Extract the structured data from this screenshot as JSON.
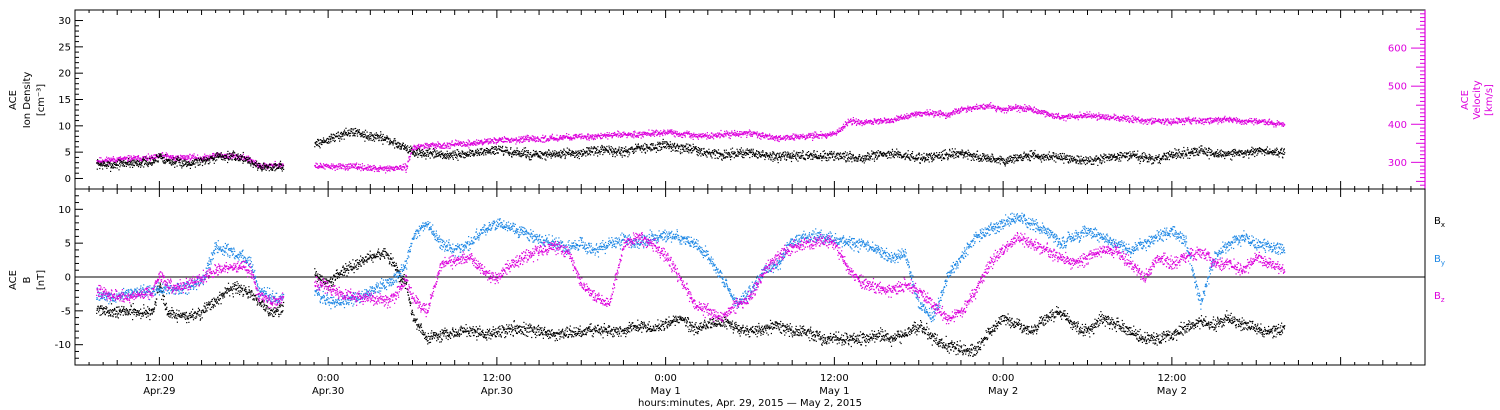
{
  "colors": {
    "black": "#000000",
    "magenta": "#dd00dd",
    "blue": "#1e88e5"
  },
  "chart_data": [
    {
      "type": "scatter",
      "panel": "top",
      "ylabel_left": [
        "ACE",
        "Ion Density",
        "[cm⁻³]"
      ],
      "ylabel_right": [
        "ACE",
        "Velocity",
        "[km/s]"
      ],
      "ylim_left": [
        -2,
        32
      ],
      "yticks_left": [
        "0",
        "5",
        "10",
        "15",
        "20",
        "25",
        "30"
      ],
      "ylim_right": [
        230,
        700
      ],
      "yticks_right": [
        "300",
        "400",
        "500",
        "600"
      ],
      "series": [
        {
          "axis": "left",
          "color": "black",
          "x": [
            7.5,
            8.5,
            9.5,
            10.5,
            11.5,
            12.0,
            12.5,
            13.0,
            14.0,
            15.0,
            16.0,
            17.0,
            18.0,
            18.5,
            19.0,
            19.8,
            20.3,
            20.8,
            21.5,
            22.0,
            22.5,
            23.0,
            24.0,
            25.0,
            26.0,
            27.0,
            28.0,
            28.5,
            29.0,
            29.5,
            30.0,
            31.0,
            32.0,
            33.0,
            34.0,
            35.0,
            36.0,
            37.0,
            38.0,
            39.0,
            40.0,
            41.0,
            42.0,
            43.0,
            44.0,
            45.0,
            46.0,
            47.0,
            48.0,
            49.0,
            50.0,
            51.0,
            52.0,
            53.0,
            54.0,
            55.0,
            56.0,
            57.0,
            58.0,
            59.0,
            60.0,
            61.0,
            62.0,
            63.0,
            64.0,
            65.0,
            66.0,
            67.0,
            68.0,
            69.0,
            70.0,
            71.0,
            72.0,
            73.0,
            74.0,
            75.0,
            76.0,
            77.0,
            78.0,
            79.0,
            80.0,
            81.0,
            82.0,
            83.0,
            84.0,
            85.0,
            86.0,
            87.0,
            88.0,
            89.0,
            90.0,
            91.0,
            92.0
          ],
          "y": [
            2.8,
            2.6,
            3.0,
            3.1,
            3.2,
            4.5,
            3.5,
            3.2,
            3.0,
            3.5,
            4.2,
            4.3,
            4.0,
            3.2,
            2.4,
            2.2,
            2.5,
            2.4,
            null,
            null,
            null,
            6.5,
            7.5,
            8.5,
            9.0,
            8.0,
            7.8,
            7.0,
            6.5,
            6.0,
            5.0,
            4.8,
            4.5,
            4.5,
            4.8,
            5.2,
            5.5,
            5.0,
            4.8,
            4.5,
            4.6,
            4.8,
            5.0,
            5.3,
            5.5,
            5.0,
            5.8,
            6.0,
            6.5,
            6.0,
            5.5,
            5.0,
            4.5,
            4.8,
            5.0,
            4.5,
            4.2,
            4.3,
            4.5,
            4.4,
            4.5,
            4.2,
            4.0,
            4.5,
            4.8,
            4.5,
            4.0,
            4.2,
            4.6,
            5.0,
            4.2,
            3.8,
            3.5,
            4.0,
            4.5,
            4.2,
            4.0,
            3.8,
            3.5,
            3.8,
            4.2,
            4.5,
            4.0,
            3.8,
            4.5,
            5.0,
            5.2,
            4.6,
            4.8,
            5.0,
            5.2,
            5.3,
            5.0
          ]
        },
        {
          "axis": "right",
          "color": "magenta",
          "x": [
            7.5,
            8.5,
            9.5,
            10.5,
            11.5,
            12.0,
            12.5,
            13.0,
            14.0,
            15.0,
            16.0,
            17.0,
            18.0,
            18.5,
            19.0,
            19.8,
            20.3,
            20.8,
            21.5,
            22.0,
            22.5,
            23.0,
            24.0,
            25.0,
            26.0,
            27.0,
            28.0,
            28.5,
            29.0,
            29.5,
            30.0,
            31.0,
            32.0,
            33.0,
            34.0,
            35.0,
            36.0,
            37.0,
            38.0,
            39.0,
            40.0,
            41.0,
            42.0,
            43.0,
            44.0,
            45.0,
            46.0,
            47.0,
            48.0,
            49.0,
            50.0,
            51.0,
            52.0,
            53.0,
            54.0,
            55.0,
            56.0,
            57.0,
            58.0,
            59.0,
            60.0,
            61.0,
            62.0,
            63.0,
            64.0,
            65.0,
            66.0,
            67.0,
            68.0,
            69.0,
            70.0,
            71.0,
            72.0,
            73.0,
            74.0,
            75.0,
            76.0,
            77.0,
            78.0,
            79.0,
            80.0,
            81.0,
            82.0,
            83.0,
            84.0,
            85.0,
            86.0,
            87.0,
            88.0,
            89.0,
            90.0,
            91.0,
            92.0
          ],
          "y": [
            305,
            308,
            310,
            312,
            312,
            318,
            318,
            312,
            315,
            312,
            320,
            318,
            315,
            305,
            292,
            292,
            295,
            293,
            null,
            null,
            null,
            292,
            290,
            290,
            290,
            285,
            284,
            285,
            288,
            286,
            340,
            345,
            345,
            350,
            350,
            355,
            360,
            360,
            362,
            362,
            365,
            368,
            368,
            370,
            372,
            375,
            375,
            378,
            380,
            375,
            372,
            370,
            375,
            375,
            378,
            370,
            365,
            368,
            370,
            372,
            375,
            410,
            405,
            410,
            412,
            420,
            430,
            430,
            425,
            440,
            445,
            450,
            440,
            445,
            440,
            430,
            420,
            420,
            425,
            420,
            418,
            415,
            410,
            410,
            408,
            412,
            410,
            412,
            415,
            410,
            408,
            405,
            400
          ]
        }
      ]
    },
    {
      "type": "scatter",
      "panel": "bottom",
      "ylabel": [
        "ACE",
        "B",
        "[nT]"
      ],
      "ylim": [
        -13,
        13
      ],
      "yticks": [
        "-10",
        "-5",
        "0",
        "5",
        "10"
      ],
      "series": [
        {
          "name": "Bx",
          "name_main": "B",
          "name_sub": "x",
          "color": "black",
          "x": [
            7.5,
            8.5,
            9.5,
            10.5,
            11.5,
            12.0,
            12.5,
            13.0,
            14.0,
            15.0,
            16.0,
            17.0,
            18.0,
            18.5,
            19.0,
            19.8,
            20.3,
            20.8,
            21.5,
            22.0,
            22.5,
            23.0,
            24.0,
            25.0,
            26.0,
            27.0,
            28.0,
            28.5,
            29.0,
            29.5,
            30.0,
            31.0,
            32.0,
            33.0,
            34.0,
            35.0,
            36.0,
            37.0,
            38.0,
            39.0,
            40.0,
            41.0,
            42.0,
            43.0,
            44.0,
            45.0,
            46.0,
            47.0,
            48.0,
            49.0,
            50.0,
            51.0,
            52.0,
            53.0,
            54.0,
            55.0,
            56.0,
            57.0,
            58.0,
            59.0,
            60.0,
            61.0,
            62.0,
            63.0,
            64.0,
            65.0,
            66.0,
            67.0,
            68.0,
            69.0,
            70.0,
            71.0,
            72.0,
            73.0,
            74.0,
            75.0,
            76.0,
            77.0,
            78.0,
            79.0,
            80.0,
            81.0,
            82.0,
            83.0,
            84.0,
            85.0,
            86.0,
            87.0,
            88.0,
            89.0,
            90.0,
            91.0,
            92.0
          ],
          "y": [
            -4.5,
            -5.0,
            -5.0,
            -5.2,
            -5.0,
            -1.0,
            -5.2,
            -5.5,
            -5.8,
            -5.0,
            -3.5,
            -1.5,
            -2.0,
            -2.5,
            -3.5,
            -5.0,
            -4.8,
            -4.5,
            null,
            null,
            null,
            0.5,
            -1.0,
            1.0,
            2.0,
            3.0,
            3.5,
            2.5,
            0.5,
            -1.0,
            -6.0,
            -9.0,
            -8.5,
            -8.0,
            -8.0,
            -8.5,
            -8.0,
            -7.5,
            -7.8,
            -8.0,
            -8.5,
            -8.2,
            -8.0,
            -7.5,
            -8.0,
            -8.0,
            -7.0,
            -7.5,
            -7.0,
            -6.0,
            -7.5,
            -7.0,
            -6.5,
            -7.5,
            -8.0,
            -7.5,
            -7.0,
            -8.0,
            -8.0,
            -9.0,
            -9.0,
            -9.2,
            -9.0,
            -8.5,
            -9.0,
            -8.5,
            -7.0,
            -9.0,
            -10.0,
            -10.5,
            -11.0,
            -8.0,
            -6.0,
            -7.0,
            -8.0,
            -6.0,
            -5.0,
            -7.0,
            -8.0,
            -6.0,
            -7.0,
            -8.0,
            -9.0,
            -9.0,
            -8.5,
            -7.5,
            -6.5,
            -7.0,
            -6.0,
            -7.0,
            -7.5,
            -8.0,
            -7.5
          ]
        },
        {
          "name": "By",
          "name_main": "B",
          "name_sub": "y",
          "color": "blue",
          "x": [
            7.5,
            8.5,
            9.5,
            10.5,
            11.5,
            12.0,
            12.5,
            13.0,
            14.0,
            15.0,
            16.0,
            17.0,
            18.0,
            18.5,
            19.0,
            19.8,
            20.3,
            20.8,
            21.5,
            22.0,
            22.5,
            23.0,
            24.0,
            25.0,
            26.0,
            27.0,
            28.0,
            28.5,
            29.0,
            29.5,
            30.0,
            31.0,
            32.0,
            33.0,
            34.0,
            35.0,
            36.0,
            37.0,
            38.0,
            39.0,
            40.0,
            41.0,
            42.0,
            43.0,
            44.0,
            45.0,
            46.0,
            47.0,
            48.0,
            49.0,
            50.0,
            51.0,
            52.0,
            53.0,
            54.0,
            55.0,
            56.0,
            57.0,
            58.0,
            59.0,
            60.0,
            61.0,
            62.0,
            63.0,
            64.0,
            65.0,
            66.0,
            67.0,
            68.0,
            69.0,
            70.0,
            71.0,
            72.0,
            73.0,
            74.0,
            75.0,
            76.0,
            77.0,
            78.0,
            79.0,
            80.0,
            81.0,
            82.0,
            83.0,
            84.0,
            85.0,
            86.0,
            87.0,
            88.0,
            89.0,
            90.0,
            91.0,
            92.0
          ],
          "y": [
            -2.5,
            -3.0,
            -2.5,
            -2.0,
            -2.0,
            -1.5,
            -1.5,
            -2.0,
            -1.5,
            -0.5,
            4.5,
            4.0,
            3.0,
            2.0,
            -2.0,
            -2.5,
            -3.0,
            -3.0,
            null,
            null,
            null,
            -2.0,
            -3.5,
            -3.5,
            -3.0,
            -2.0,
            -1.0,
            -0.5,
            0.5,
            2.0,
            6.0,
            8.0,
            5.0,
            4.0,
            5.0,
            7.0,
            8.0,
            7.5,
            6.5,
            5.5,
            5.0,
            4.5,
            5.0,
            4.0,
            5.0,
            5.5,
            5.0,
            6.0,
            6.0,
            6.0,
            5.0,
            3.0,
            0.0,
            -4.0,
            -2.0,
            1.0,
            2.0,
            5.5,
            6.0,
            6.0,
            5.5,
            5.0,
            5.0,
            4.0,
            3.0,
            3.5,
            -4.0,
            -6.0,
            0.0,
            3.0,
            6.0,
            7.0,
            8.0,
            9.0,
            8.0,
            7.0,
            5.0,
            6.0,
            7.0,
            6.0,
            5.0,
            4.0,
            5.0,
            6.0,
            7.0,
            5.0,
            -4.0,
            3.0,
            5.0,
            6.0,
            5.0,
            4.5,
            4.0
          ]
        },
        {
          "name": "Bz",
          "name_main": "B",
          "name_sub": "z",
          "color": "magenta",
          "x": [
            7.5,
            8.5,
            9.5,
            10.5,
            11.5,
            12.0,
            12.5,
            13.0,
            14.0,
            15.0,
            16.0,
            17.0,
            18.0,
            18.5,
            19.0,
            19.8,
            20.3,
            20.8,
            21.5,
            22.0,
            22.5,
            23.0,
            24.0,
            25.0,
            26.0,
            27.0,
            28.0,
            28.5,
            29.0,
            29.5,
            30.0,
            31.0,
            32.0,
            33.0,
            34.0,
            35.0,
            36.0,
            37.0,
            38.0,
            39.0,
            40.0,
            41.0,
            42.0,
            43.0,
            44.0,
            45.0,
            46.0,
            47.0,
            48.0,
            49.0,
            50.0,
            51.0,
            52.0,
            53.0,
            54.0,
            55.0,
            56.0,
            57.0,
            58.0,
            59.0,
            60.0,
            61.0,
            62.0,
            63.0,
            64.0,
            65.0,
            66.0,
            67.0,
            68.0,
            69.0,
            70.0,
            71.0,
            72.0,
            73.0,
            74.0,
            75.0,
            76.0,
            77.0,
            78.0,
            79.0,
            80.0,
            81.0,
            82.0,
            83.0,
            84.0,
            85.0,
            86.0,
            87.0,
            88.0,
            89.0,
            90.0,
            91.0,
            92.0
          ],
          "y": [
            -2.0,
            -2.5,
            -3.0,
            -2.5,
            -2.0,
            0.5,
            -1.0,
            -1.5,
            -1.0,
            0.0,
            1.0,
            1.5,
            1.5,
            1.0,
            -2.5,
            -3.5,
            -3.5,
            -3.0,
            null,
            null,
            null,
            -0.5,
            -1.5,
            -2.5,
            -3.0,
            -3.0,
            -3.5,
            -3.0,
            -2.0,
            0.0,
            -3.0,
            -5.0,
            2.0,
            2.5,
            3.0,
            1.0,
            0.0,
            2.0,
            3.0,
            4.0,
            4.5,
            4.0,
            -1.0,
            -3.0,
            -4.0,
            5.0,
            6.0,
            5.0,
            3.0,
            0.0,
            -4.0,
            -5.0,
            -6.0,
            -4.0,
            -3.0,
            1.0,
            3.0,
            4.5,
            5.0,
            5.5,
            5.0,
            1.0,
            -1.0,
            -1.5,
            -2.0,
            -1.0,
            -2.0,
            -4.0,
            -6.0,
            -5.0,
            -2.0,
            2.0,
            4.0,
            6.0,
            5.0,
            4.0,
            3.0,
            2.0,
            3.0,
            4.0,
            4.0,
            2.0,
            0.0,
            3.0,
            2.0,
            3.0,
            4.0,
            2.0,
            2.0,
            1.0,
            3.0,
            2.0,
            1.0
          ]
        }
      ]
    }
  ],
  "x_axis": {
    "xlim": [
      6.0,
      102.0
    ],
    "ticks": [
      {
        "x": 12,
        "time": "12:00",
        "date": "Apr.29"
      },
      {
        "x": 24,
        "time": "0:00",
        "date": "Apr.30"
      },
      {
        "x": 36,
        "time": "12:00",
        "date": "Apr.30"
      },
      {
        "x": 48,
        "time": "0:00",
        "date": "May 1"
      },
      {
        "x": 60,
        "time": "12:00",
        "date": "May 1"
      },
      {
        "x": 72,
        "time": "0:00",
        "date": "May 2"
      },
      {
        "x": 84,
        "time": "12:00",
        "date": "May 2"
      }
    ],
    "label": "hours:minutes, Apr. 29, 2015 — May  2, 2015"
  }
}
